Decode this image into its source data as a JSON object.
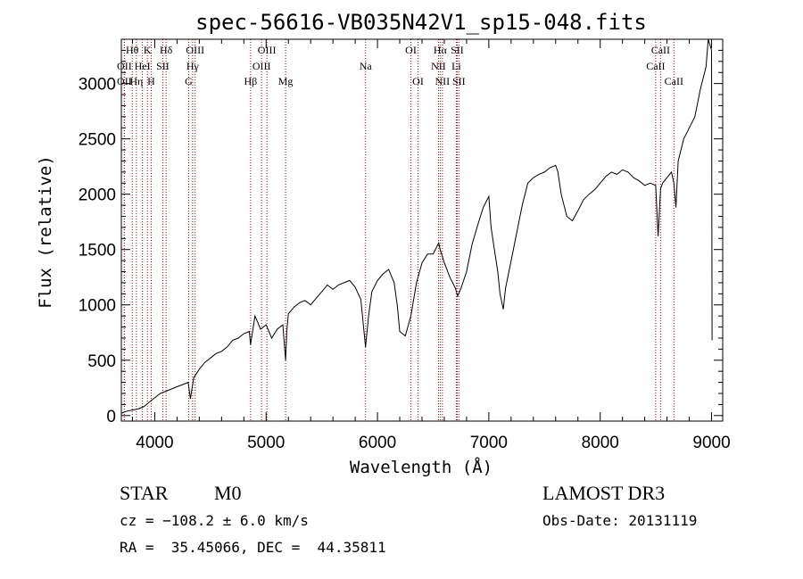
{
  "chart_data": {
    "type": "line",
    "title": "spec-56616-VB035N42V1_sp15-048.fits",
    "xlabel": "Wavelength (Å)",
    "ylabel": "Flux (relative)",
    "xlim": [
      3700,
      9100
    ],
    "ylim": [
      -50,
      3400
    ],
    "xticks": [
      4000,
      5000,
      6000,
      7000,
      8000,
      9000
    ],
    "yticks": [
      0,
      500,
      1000,
      1500,
      2000,
      2500,
      3000
    ],
    "series": [
      {
        "name": "spectrum",
        "x": [
          3700,
          3750,
          3800,
          3850,
          3900,
          3950,
          4000,
          4050,
          4100,
          4150,
          4200,
          4250,
          4300,
          4320,
          4350,
          4400,
          4450,
          4500,
          4550,
          4600,
          4650,
          4700,
          4750,
          4800,
          4850,
          4860,
          4900,
          4950,
          5000,
          5050,
          5100,
          5150,
          5175,
          5185,
          5200,
          5250,
          5300,
          5350,
          5400,
          5450,
          5500,
          5550,
          5600,
          5650,
          5700,
          5750,
          5800,
          5850,
          5893,
          5920,
          5950,
          6000,
          6050,
          6100,
          6150,
          6180,
          6200,
          6250,
          6300,
          6350,
          6400,
          6450,
          6500,
          6550,
          6563,
          6600,
          6650,
          6700,
          6720,
          6750,
          6800,
          6850,
          6900,
          6950,
          7000,
          7020,
          7050,
          7080,
          7100,
          7130,
          7150,
          7200,
          7250,
          7300,
          7350,
          7400,
          7450,
          7500,
          7550,
          7600,
          7620,
          7650,
          7700,
          7750,
          7800,
          7850,
          7900,
          7950,
          8000,
          8050,
          8100,
          8150,
          8200,
          8250,
          8300,
          8350,
          8400,
          8450,
          8498,
          8520,
          8542,
          8560,
          8600,
          8640,
          8662,
          8680,
          8700,
          8750,
          8800,
          8850,
          8900,
          8950,
          8970,
          9000,
          9005
        ],
        "y": [
          20,
          40,
          50,
          60,
          80,
          120,
          160,
          200,
          220,
          240,
          260,
          280,
          300,
          150,
          340,
          420,
          480,
          520,
          560,
          580,
          620,
          680,
          700,
          740,
          760,
          640,
          900,
          780,
          820,
          700,
          780,
          820,
          500,
          760,
          920,
          980,
          1020,
          1040,
          1000,
          1060,
          1120,
          1180,
          1140,
          1180,
          1200,
          1220,
          1160,
          1050,
          620,
          900,
          1120,
          1220,
          1280,
          1320,
          1200,
          980,
          760,
          720,
          900,
          1200,
          1380,
          1460,
          1460,
          1560,
          1500,
          1380,
          1250,
          1150,
          1080,
          1150,
          1300,
          1550,
          1720,
          1880,
          1980,
          1700,
          1500,
          1300,
          1100,
          960,
          1150,
          1400,
          1650,
          1900,
          2100,
          2150,
          2180,
          2200,
          2240,
          2260,
          2200,
          2000,
          1800,
          1760,
          1850,
          1950,
          2000,
          2040,
          2100,
          2160,
          2200,
          2180,
          2220,
          2200,
          2150,
          2120,
          2080,
          2100,
          2080,
          1620,
          2050,
          2100,
          2150,
          2200,
          2100,
          1880,
          2300,
          2500,
          2600,
          2700,
          2950,
          3150,
          3400,
          3300,
          680
        ]
      }
    ],
    "lines": [
      {
        "name": "Hθ",
        "wl": 3798,
        "row": 0
      },
      {
        "name": "OII",
        "wl": 3727,
        "row": 1
      },
      {
        "name": "OII",
        "wl": 3727,
        "row": 2
      },
      {
        "name": "Hη",
        "wl": 3835,
        "row": 2
      },
      {
        "name": "HeI",
        "wl": 3889,
        "row": 1
      },
      {
        "name": "K",
        "wl": 3934,
        "row": 0
      },
      {
        "name": "H",
        "wl": 3968,
        "row": 2
      },
      {
        "name": "SII",
        "wl": 4072,
        "row": 1
      },
      {
        "name": "Hδ",
        "wl": 4102,
        "row": 0
      },
      {
        "name": "OIII",
        "wl": 4363,
        "row": 0
      },
      {
        "name": "Hγ",
        "wl": 4340,
        "row": 1
      },
      {
        "name": "G",
        "wl": 4305,
        "row": 2
      },
      {
        "name": "Hβ",
        "wl": 4861,
        "row": 2
      },
      {
        "name": "OIII",
        "wl": 4959,
        "row": 1
      },
      {
        "name": "OIII",
        "wl": 5007,
        "row": 0
      },
      {
        "name": "Mg",
        "wl": 5175,
        "row": 2
      },
      {
        "name": "Na",
        "wl": 5893,
        "row": 1
      },
      {
        "name": "OI",
        "wl": 6300,
        "row": 0
      },
      {
        "name": "OI",
        "wl": 6364,
        "row": 2
      },
      {
        "name": "Hα",
        "wl": 6563,
        "row": 0
      },
      {
        "name": "NII",
        "wl": 6548,
        "row": 1
      },
      {
        "name": "NII",
        "wl": 6583,
        "row": 2
      },
      {
        "name": "SII",
        "wl": 6716,
        "row": 0
      },
      {
        "name": "Li",
        "wl": 6708,
        "row": 1
      },
      {
        "name": "SII",
        "wl": 6731,
        "row": 2
      },
      {
        "name": "CaII",
        "wl": 8542,
        "row": 0
      },
      {
        "name": "CaII",
        "wl": 8498,
        "row": 1
      },
      {
        "name": "CaII",
        "wl": 8662,
        "row": 2
      }
    ]
  },
  "info": {
    "object_class": "STAR",
    "subclass": "M0",
    "survey": "LAMOST DR3",
    "redshift": "cz = −108.2 ± 6.0 km/s",
    "obs_date": "Obs-Date: 20131119",
    "coords": "RA =  35.45066, DEC =  44.35811"
  },
  "colors": {
    "spectrum": "#000000",
    "line_markers": "#b00000",
    "axes": "#000000"
  }
}
